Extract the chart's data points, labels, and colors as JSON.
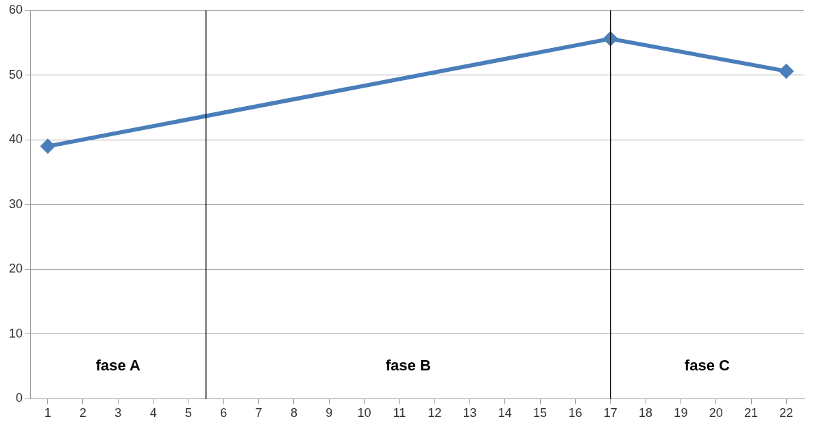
{
  "chart_data": {
    "type": "line",
    "x": [
      1,
      17,
      22
    ],
    "series": [
      {
        "color": "#4a7ebb",
        "values": [
          39,
          55.6,
          50.6
        ]
      }
    ],
    "xlim": [
      0.5,
      22.5
    ],
    "xticks": [
      1,
      2,
      3,
      4,
      5,
      6,
      7,
      8,
      9,
      10,
      11,
      12,
      13,
      14,
      15,
      16,
      17,
      18,
      19,
      20,
      21,
      22
    ],
    "ylim": [
      0,
      60
    ],
    "yticks": [
      0,
      10,
      20,
      30,
      40,
      50,
      60
    ],
    "grid": "y",
    "marker": "diamond",
    "line_style": "solid",
    "legend": false,
    "ref_lines": [
      {
        "axis": "x",
        "value": 5.5,
        "color": "#000000"
      },
      {
        "axis": "x",
        "value": 17,
        "color": "#000000"
      }
    ],
    "annotations": [
      "fase A",
      "fase B",
      "fase C"
    ]
  }
}
